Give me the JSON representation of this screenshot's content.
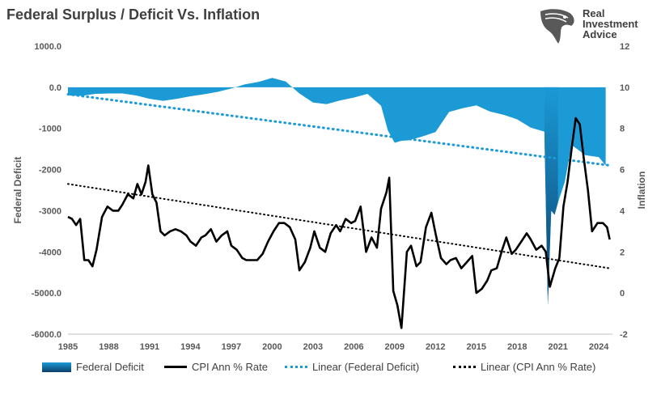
{
  "title": "Federal Surplus / Deficit Vs. Inflation",
  "logo": {
    "line1": "Real",
    "line2": "Investment",
    "line3": "Advice",
    "icon": "eagle-head-icon"
  },
  "legend": {
    "deficit": "Federal Deficit",
    "cpi": "CPI Ann % Rate",
    "lin_deficit": "Linear (Federal Deficit)",
    "lin_cpi": "Linear (CPI Ann % Rate)"
  },
  "colors": {
    "deficit_fill": "#1b9ad6",
    "deficit_dark": "#0c3f6a",
    "cpi": "#000000",
    "trend_blue": "#1b9ad6",
    "trend_black": "#000000"
  },
  "chart_data": {
    "type": "area",
    "title": "Federal Surplus / Deficit Vs. Inflation",
    "xlabel": "",
    "ylabel": "Federal Deficit",
    "y2label": "Inflation",
    "xlim": [
      1985,
      2025
    ],
    "ylim": [
      -6000,
      1000
    ],
    "y2lim": [
      -2,
      12
    ],
    "grid": false,
    "legend_position": "bottom",
    "x_ticks": [
      "1985",
      "1988",
      "1991",
      "1994",
      "1997",
      "2000",
      "2003",
      "2006",
      "2009",
      "2012",
      "2015",
      "2018",
      "2021",
      "2024"
    ],
    "y_ticks": [
      "1000.0",
      "0.0",
      "-1000",
      "-2000",
      "-3000",
      "-4000",
      "-5000.0",
      "-6000.0"
    ],
    "y2_ticks": [
      "12",
      "10",
      "8",
      "6",
      "4",
      "2",
      "0",
      "-2"
    ],
    "series": [
      {
        "name": "Federal Deficit",
        "type": "area",
        "axis": "left",
        "x": [
          1985,
          1986,
          1987,
          1988,
          1989,
          1990,
          1991,
          1992,
          1993,
          1994,
          1995,
          1996,
          1997,
          1998,
          1999,
          2000,
          2001,
          2002,
          2003,
          2004,
          2005,
          2006,
          2007,
          2008,
          2008.5,
          2009,
          2009.5,
          2010,
          2011,
          2012,
          2013,
          2014,
          2015,
          2016,
          2017,
          2018,
          2019,
          2020,
          2020.25,
          2020.5,
          2020.75,
          2021,
          2021.5,
          2022,
          2023,
          2024,
          2024.5
        ],
        "values": [
          -200,
          -210,
          -160,
          -150,
          -150,
          -200,
          -280,
          -330,
          -280,
          -220,
          -170,
          -110,
          -30,
          70,
          130,
          230,
          140,
          -150,
          -370,
          -410,
          -320,
          -250,
          -160,
          -450,
          -1050,
          -1350,
          -1300,
          -1290,
          -1200,
          -1090,
          -600,
          -510,
          -440,
          -590,
          -670,
          -780,
          -980,
          -1080,
          -5300,
          -3000,
          -3100,
          -2800,
          -2300,
          -1400,
          -1650,
          -1700,
          -1900
        ]
      },
      {
        "name": "CPI Ann % Rate",
        "type": "line",
        "axis": "right",
        "x": [
          1985,
          1985.3,
          1985.6,
          1985.9,
          1986.2,
          1986.5,
          1986.8,
          1987.1,
          1987.5,
          1987.9,
          1988.3,
          1988.7,
          1989,
          1989.4,
          1989.8,
          1990.1,
          1990.4,
          1990.7,
          1990.9,
          1991.2,
          1991.5,
          1991.8,
          1992.1,
          1992.5,
          1992.9,
          1993.3,
          1993.7,
          1994,
          1994.4,
          1994.8,
          1995.1,
          1995.5,
          1995.9,
          1996.3,
          1996.7,
          1997,
          1997.4,
          1997.8,
          1998.1,
          1998.5,
          1998.9,
          1999.3,
          1999.7,
          2000.1,
          2000.5,
          2000.9,
          2001.3,
          2001.7,
          2002,
          2002.4,
          2002.8,
          2003.1,
          2003.5,
          2003.9,
          2004.3,
          2004.7,
          2005,
          2005.4,
          2005.8,
          2006.1,
          2006.5,
          2006.9,
          2007.3,
          2007.7,
          2008,
          2008.4,
          2008.6,
          2008.9,
          2009.2,
          2009.5,
          2009.9,
          2010.2,
          2010.6,
          2010.9,
          2011.3,
          2011.7,
          2012,
          2012.4,
          2012.8,
          2013.1,
          2013.5,
          2013.9,
          2014.3,
          2014.7,
          2015,
          2015.4,
          2015.8,
          2016.1,
          2016.5,
          2016.9,
          2017.2,
          2017.6,
          2017.9,
          2018.3,
          2018.7,
          2019,
          2019.4,
          2019.8,
          2020.1,
          2020.4,
          2020.8,
          2021.1,
          2021.4,
          2021.7,
          2022,
          2022.3,
          2022.6,
          2022.9,
          2023.2,
          2023.5,
          2023.9,
          2024.3,
          2024.6,
          2024.8
        ],
        "values": [
          3.7,
          3.6,
          3.3,
          3.6,
          1.6,
          1.6,
          1.3,
          2.1,
          3.7,
          4.2,
          4.0,
          4.0,
          4.3,
          4.8,
          4.6,
          5.3,
          4.8,
          5.4,
          6.2,
          4.8,
          4.4,
          3.0,
          2.8,
          3.0,
          3.1,
          3.0,
          2.8,
          2.5,
          2.3,
          2.7,
          2.8,
          3.1,
          2.5,
          2.8,
          3.0,
          2.3,
          2.1,
          1.7,
          1.6,
          1.6,
          1.6,
          1.9,
          2.5,
          3.0,
          3.4,
          3.4,
          3.2,
          2.6,
          1.1,
          1.5,
          2.2,
          3.0,
          2.2,
          2.0,
          2.9,
          3.3,
          3.0,
          3.6,
          3.4,
          3.5,
          4.2,
          2.0,
          2.7,
          2.2,
          4.1,
          4.9,
          5.6,
          0.1,
          -0.6,
          -1.7,
          2.0,
          2.3,
          1.3,
          1.5,
          3.2,
          3.9,
          2.9,
          1.7,
          1.4,
          1.6,
          1.7,
          1.2,
          1.5,
          1.8,
          0.0,
          0.2,
          0.6,
          1.1,
          1.2,
          2.1,
          2.7,
          1.9,
          2.1,
          2.5,
          2.9,
          2.6,
          2.1,
          2.3,
          2.0,
          0.3,
          1.2,
          1.7,
          4.2,
          5.4,
          7.0,
          8.5,
          8.2,
          6.5,
          5.0,
          3.0,
          3.4,
          3.4,
          3.2,
          2.6
        ]
      },
      {
        "name": "Linear (Federal Deficit)",
        "type": "line",
        "axis": "left",
        "style": "dotted",
        "x": [
          1985,
          2024.8
        ],
        "values": [
          -170,
          -1900
        ]
      },
      {
        "name": "Linear (CPI Ann % Rate)",
        "type": "line",
        "axis": "right",
        "style": "dotted",
        "x": [
          1985,
          2024.8
        ],
        "values": [
          5.3,
          1.2
        ]
      }
    ]
  }
}
